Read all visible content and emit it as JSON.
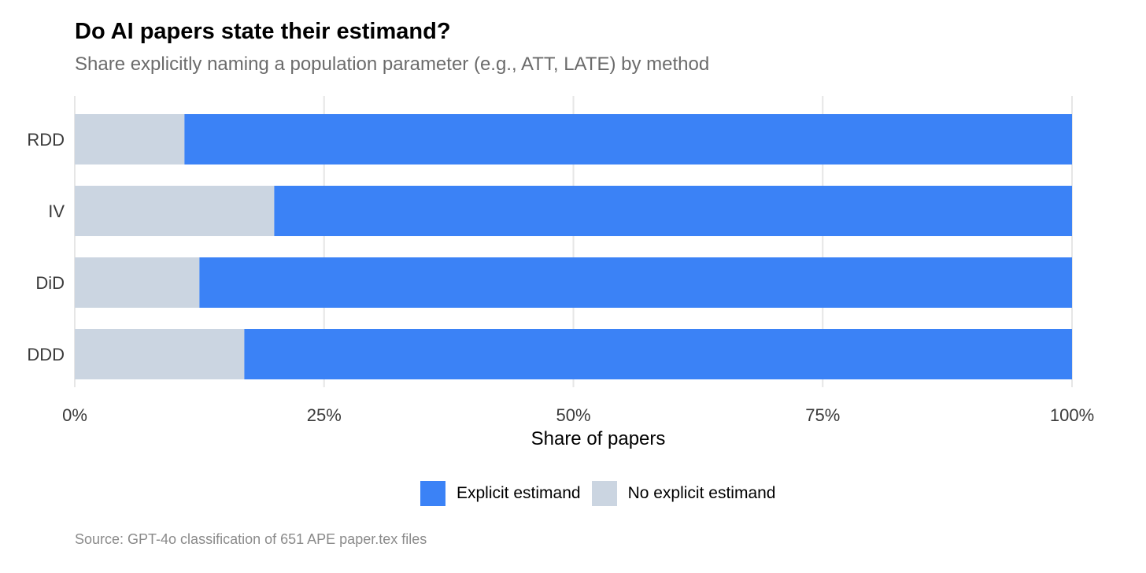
{
  "header": {
    "title": "Do AI papers state their estimand?",
    "subtitle": "Share explicitly naming a population parameter (e.g., ATT, LATE) by method"
  },
  "footer": {
    "source": "Source: GPT-4o classification of 651 APE paper.tex files"
  },
  "colors": {
    "explicit": "#3b82f6",
    "no_explicit": "#cbd5e1",
    "grid": "#e6e6e6",
    "axis_text": "#3a3a3a"
  },
  "chart_data": {
    "type": "bar",
    "orientation": "horizontal",
    "stacked": true,
    "title": "Do AI papers state their estimand?",
    "subtitle": "Share explicitly naming a population parameter (e.g., ATT, LATE) by method",
    "categories": [
      "RDD",
      "IV",
      "DiD",
      "DDD"
    ],
    "series": [
      {
        "name": "No explicit estimand",
        "values": [
          0.11,
          0.2,
          0.125,
          0.17
        ]
      },
      {
        "name": "Explicit estimand",
        "values": [
          0.89,
          0.8,
          0.875,
          0.83
        ]
      }
    ],
    "xlabel": "Share of papers",
    "ylabel": "",
    "xlim": [
      0,
      1
    ],
    "x_ticks": [
      0,
      0.25,
      0.5,
      0.75,
      1
    ],
    "x_tick_labels": [
      "0%",
      "25%",
      "50%",
      "75%",
      "100%"
    ],
    "grid": true,
    "legend": {
      "placement": "bottom",
      "entries": [
        "Explicit estimand",
        "No explicit estimand"
      ]
    },
    "source": "Source: GPT-4o classification of 651 APE paper.tex files"
  }
}
